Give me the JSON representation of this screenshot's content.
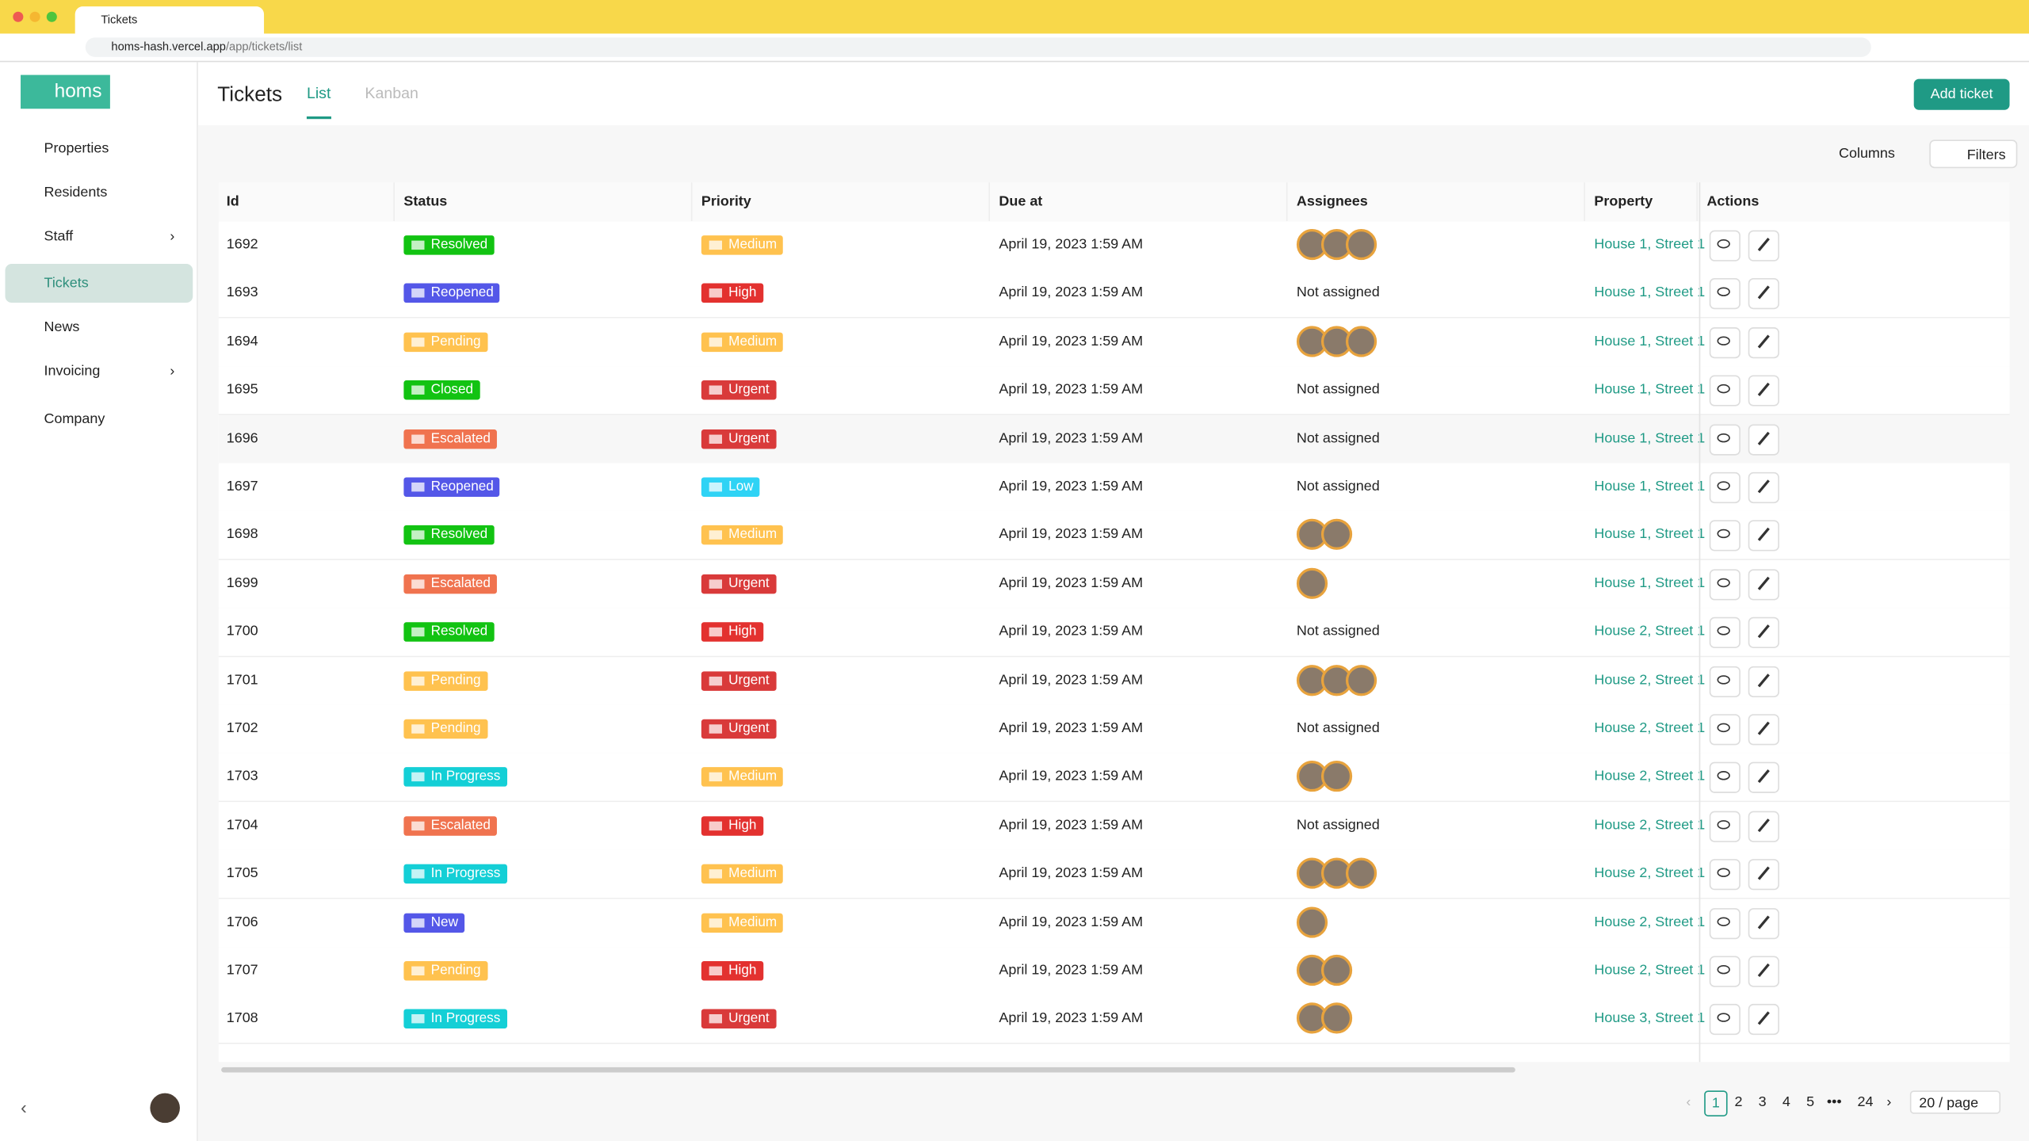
{
  "browser": {
    "tab_title": "Tickets",
    "url_host": "homs-hash.vercel.app",
    "url_path": "/app/tickets/list"
  },
  "sidebar": {
    "logo": "homs",
    "items": [
      "Properties",
      "Residents",
      "Staff",
      "Tickets",
      "News",
      "Invoicing",
      "Company"
    ],
    "active": 3,
    "expandable": [
      2,
      5
    ]
  },
  "header": {
    "title": "Tickets",
    "tabs": [
      "List",
      "Kanban"
    ],
    "active_tab": 0,
    "add_button": "Add ticket"
  },
  "toolbar": {
    "columns": "Columns",
    "filters": "Filters"
  },
  "table": {
    "columns": [
      "Id",
      "Status",
      "Priority",
      "Due at",
      "Assignees",
      "Property",
      "Actions"
    ],
    "status_colors": {
      "Resolved": "#12c312",
      "Closed": "#12c312",
      "Reopened": "#5457e8",
      "New": "#5457e8",
      "Pending": "#ffc24f",
      "Escalated": "#f0734f",
      "In Progress": "#14cfd6"
    },
    "priority_colors": {
      "Medium": "#ffc24f",
      "High": "#e3312f",
      "Urgent": "#d93a3a",
      "Low": "#2fd3f5"
    },
    "rows": [
      {
        "id": 1692,
        "status": "Resolved",
        "priority": "Medium",
        "due": "April 19, 2023 1:59 AM",
        "avatars": 3,
        "assignees": null,
        "property": "House 1, Street 1"
      },
      {
        "id": 1693,
        "status": "Reopened",
        "priority": "High",
        "due": "April 19, 2023 1:59 AM",
        "avatars": 0,
        "assignees": "Not assigned",
        "property": "House 1, Street 1"
      },
      {
        "id": 1694,
        "status": "Pending",
        "priority": "Medium",
        "due": "April 19, 2023 1:59 AM",
        "avatars": 3,
        "assignees": null,
        "property": "House 1, Street 1"
      },
      {
        "id": 1695,
        "status": "Closed",
        "priority": "Urgent",
        "due": "April 19, 2023 1:59 AM",
        "avatars": 0,
        "assignees": "Not assigned",
        "property": "House 1, Street 1"
      },
      {
        "id": 1696,
        "status": "Escalated",
        "priority": "Urgent",
        "due": "April 19, 2023 1:59 AM",
        "avatars": 0,
        "assignees": "Not assigned",
        "property": "House 1, Street 1"
      },
      {
        "id": 1697,
        "status": "Reopened",
        "priority": "Low",
        "due": "April 19, 2023 1:59 AM",
        "avatars": 0,
        "assignees": "Not assigned",
        "property": "House 1, Street 1"
      },
      {
        "id": 1698,
        "status": "Resolved",
        "priority": "Medium",
        "due": "April 19, 2023 1:59 AM",
        "avatars": 2,
        "assignees": null,
        "property": "House 1, Street 1"
      },
      {
        "id": 1699,
        "status": "Escalated",
        "priority": "Urgent",
        "due": "April 19, 2023 1:59 AM",
        "avatars": 1,
        "assignees": null,
        "property": "House 1, Street 1"
      },
      {
        "id": 1700,
        "status": "Resolved",
        "priority": "High",
        "due": "April 19, 2023 1:59 AM",
        "avatars": 0,
        "assignees": "Not assigned",
        "property": "House 2, Street 1"
      },
      {
        "id": 1701,
        "status": "Pending",
        "priority": "Urgent",
        "due": "April 19, 2023 1:59 AM",
        "avatars": 3,
        "assignees": null,
        "property": "House 2, Street 1"
      },
      {
        "id": 1702,
        "status": "Pending",
        "priority": "Urgent",
        "due": "April 19, 2023 1:59 AM",
        "avatars": 0,
        "assignees": "Not assigned",
        "property": "House 2, Street 1"
      },
      {
        "id": 1703,
        "status": "In Progress",
        "priority": "Medium",
        "due": "April 19, 2023 1:59 AM",
        "avatars": 2,
        "assignees": null,
        "property": "House 2, Street 1"
      },
      {
        "id": 1704,
        "status": "Escalated",
        "priority": "High",
        "due": "April 19, 2023 1:59 AM",
        "avatars": 0,
        "assignees": "Not assigned",
        "property": "House 2, Street 1"
      },
      {
        "id": 1705,
        "status": "In Progress",
        "priority": "Medium",
        "due": "April 19, 2023 1:59 AM",
        "avatars": 3,
        "assignees": null,
        "property": "House 2, Street 1"
      },
      {
        "id": 1706,
        "status": "New",
        "priority": "Medium",
        "due": "April 19, 2023 1:59 AM",
        "avatars": 1,
        "assignees": null,
        "property": "House 2, Street 1"
      },
      {
        "id": 1707,
        "status": "Pending",
        "priority": "High",
        "due": "April 19, 2023 1:59 AM",
        "avatars": 2,
        "assignees": null,
        "property": "House 2, Street 1"
      },
      {
        "id": 1708,
        "status": "In Progress",
        "priority": "Urgent",
        "due": "April 19, 2023 1:59 AM",
        "avatars": 2,
        "assignees": null,
        "property": "House 3, Street 1"
      }
    ]
  },
  "pagination": {
    "pages": [
      "1",
      "2",
      "3",
      "4",
      "5",
      "•••",
      "24"
    ],
    "current": 0,
    "page_size": "20 / page"
  }
}
